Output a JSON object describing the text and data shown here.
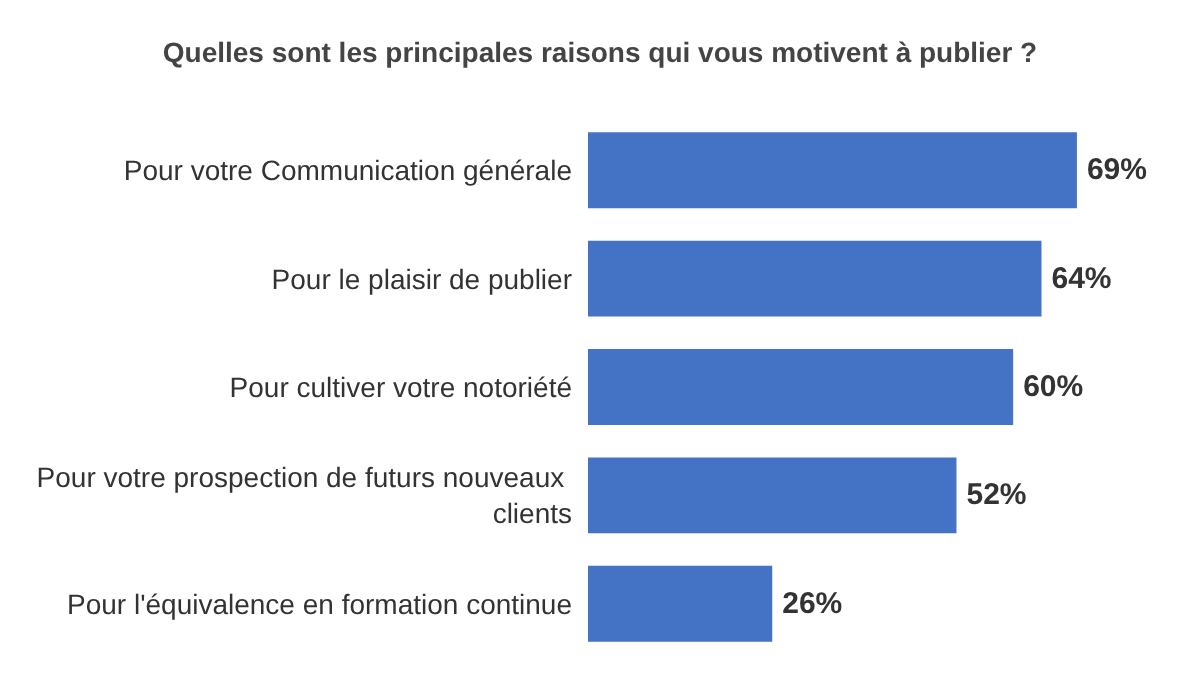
{
  "chart_data": {
    "type": "bar",
    "orientation": "horizontal",
    "title": "Quelles sont les principales raisons qui vous motivent à publier ?",
    "categories": [
      "Pour votre Communication générale",
      "Pour le plaisir de publier",
      "Pour cultiver votre notoriété",
      "Pour votre prospection de futurs nouveaux clients",
      "Pour l'équivalence en formation continue"
    ],
    "values": [
      69,
      64,
      60,
      52,
      26
    ],
    "value_labels": [
      "69%",
      "64%",
      "60%",
      "52%",
      "26%"
    ],
    "color": "#4472c4"
  }
}
